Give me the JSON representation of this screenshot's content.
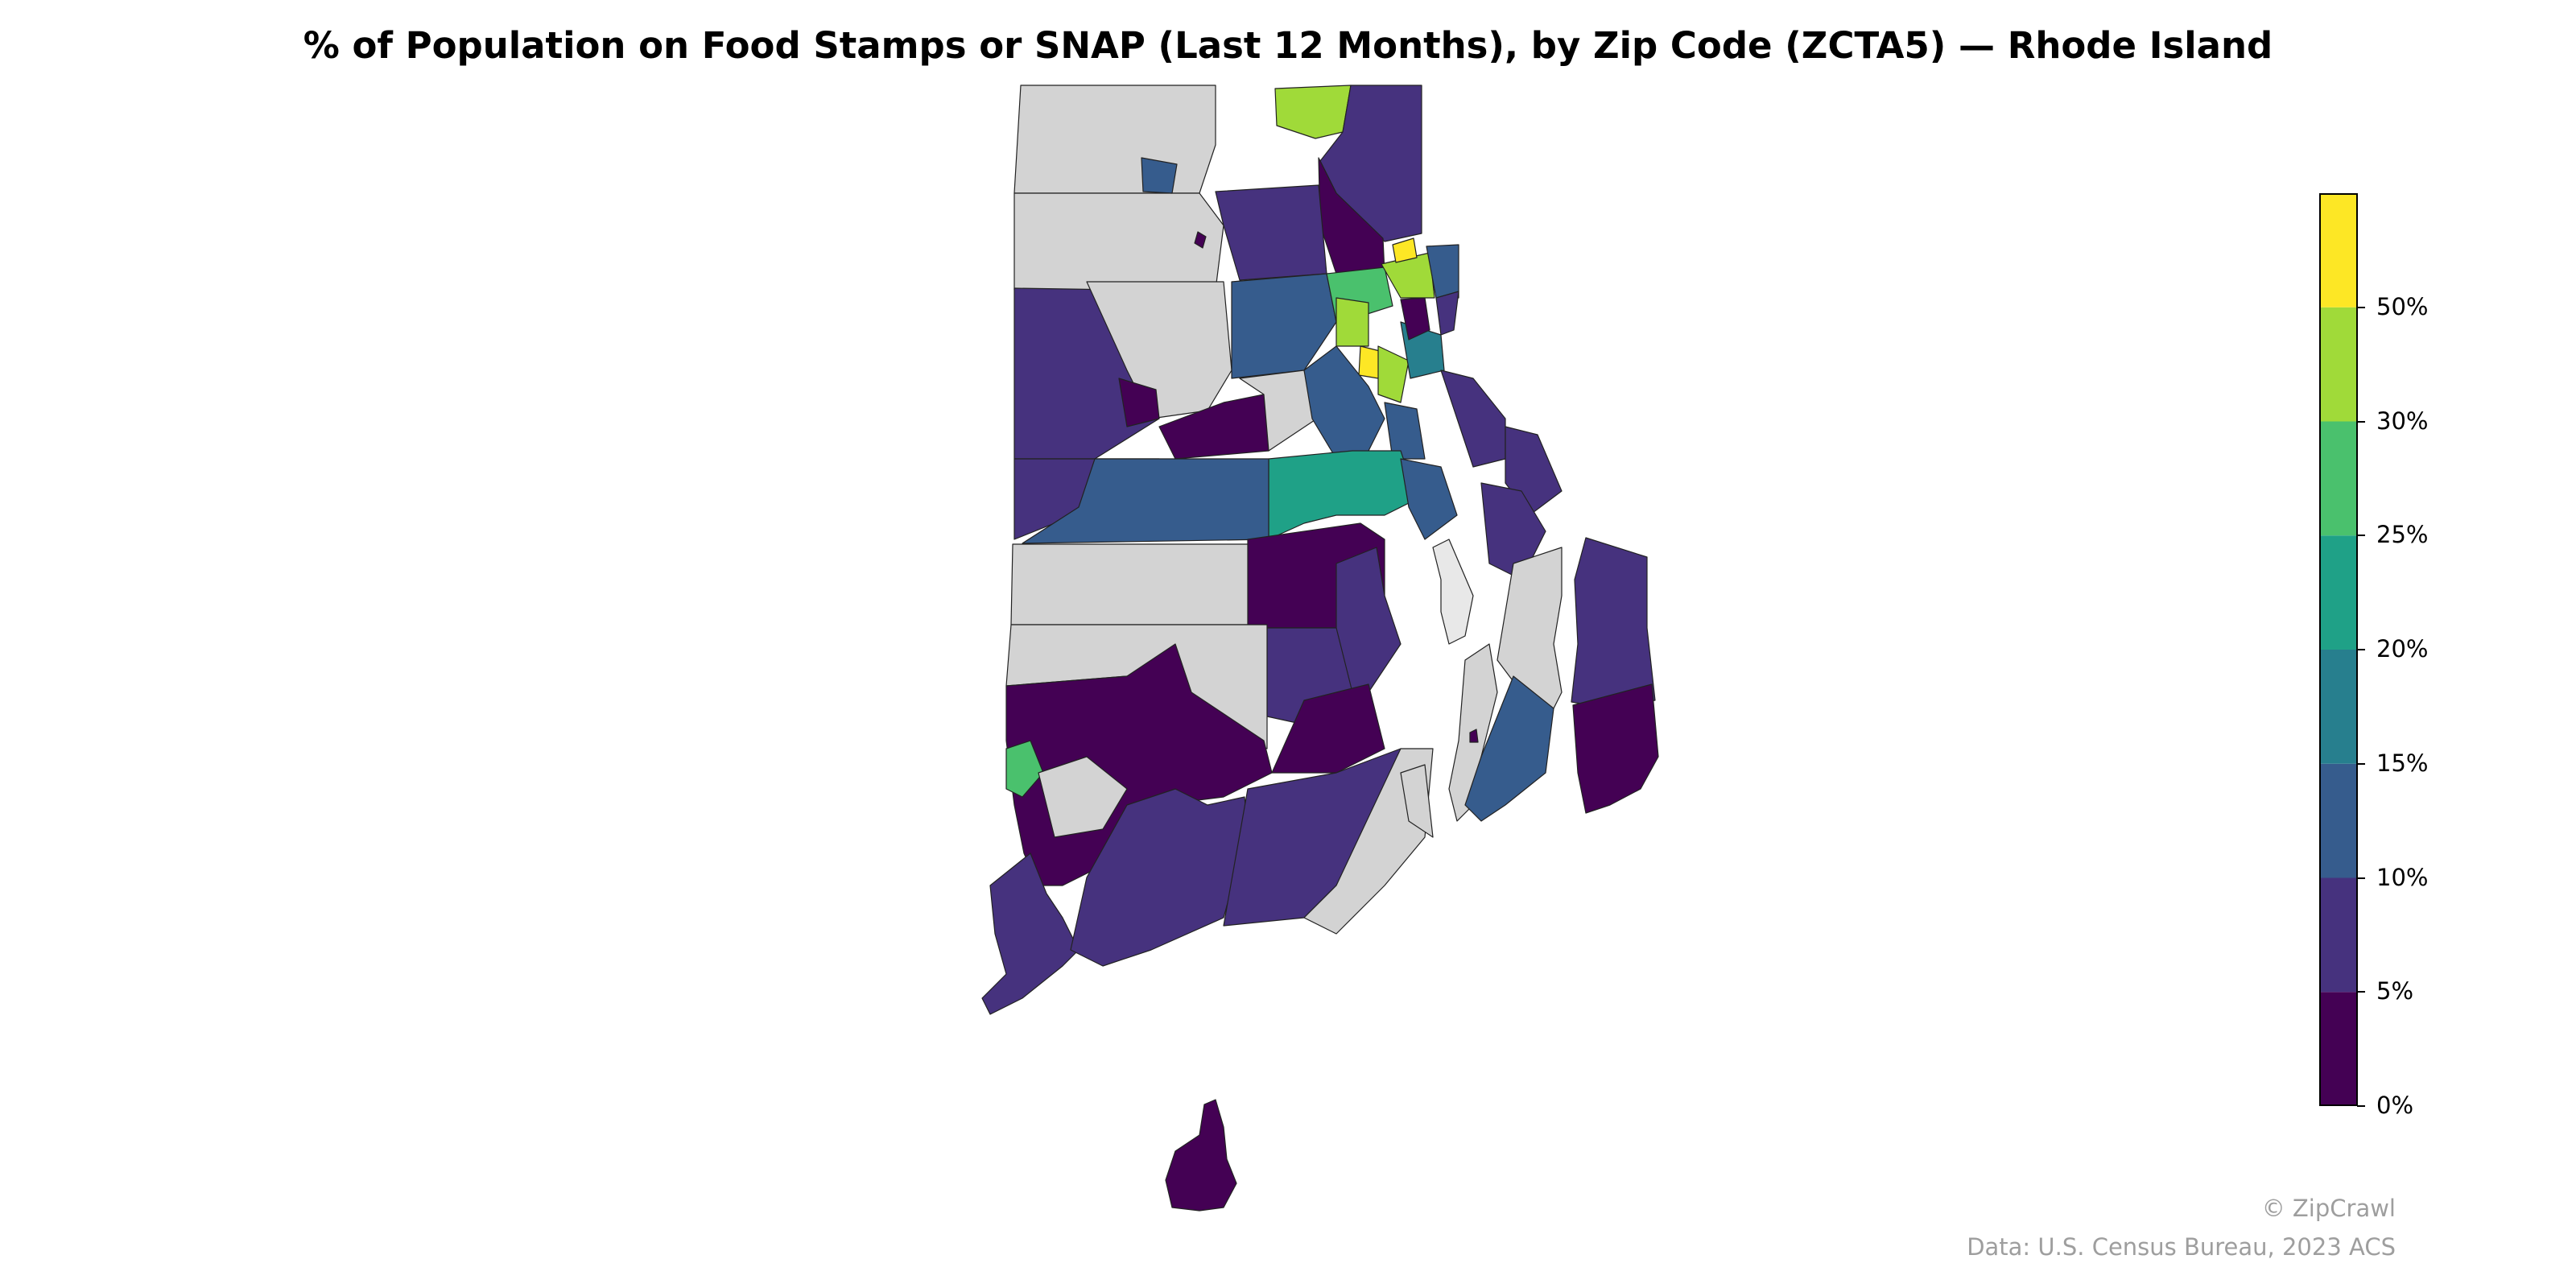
{
  "title": "% of Population on Food Stamps or SNAP (Last 12 Months), by Zip Code (ZCTA5) — Rhode Island",
  "colorbar": {
    "colors": [
      "#440154",
      "#46327e",
      "#365c8d",
      "#277f8e",
      "#1fa187",
      "#4ac16d",
      "#a0da39",
      "#fde725"
    ],
    "ticks": [
      {
        "label": "0%",
        "value": 0
      },
      {
        "label": "5%",
        "value": 5
      },
      {
        "label": "10%",
        "value": 10
      },
      {
        "label": "15%",
        "value": 15
      },
      {
        "label": "20%",
        "value": 20
      },
      {
        "label": "25%",
        "value": 25
      },
      {
        "label": "30%",
        "value": 30
      },
      {
        "label": "50%",
        "value": 50
      }
    ],
    "no_data_color": "#d3d3d3"
  },
  "credits": {
    "brand": "© ZipCrawl",
    "source": "Data: U.S. Census Bureau, 2023 ACS"
  }
}
